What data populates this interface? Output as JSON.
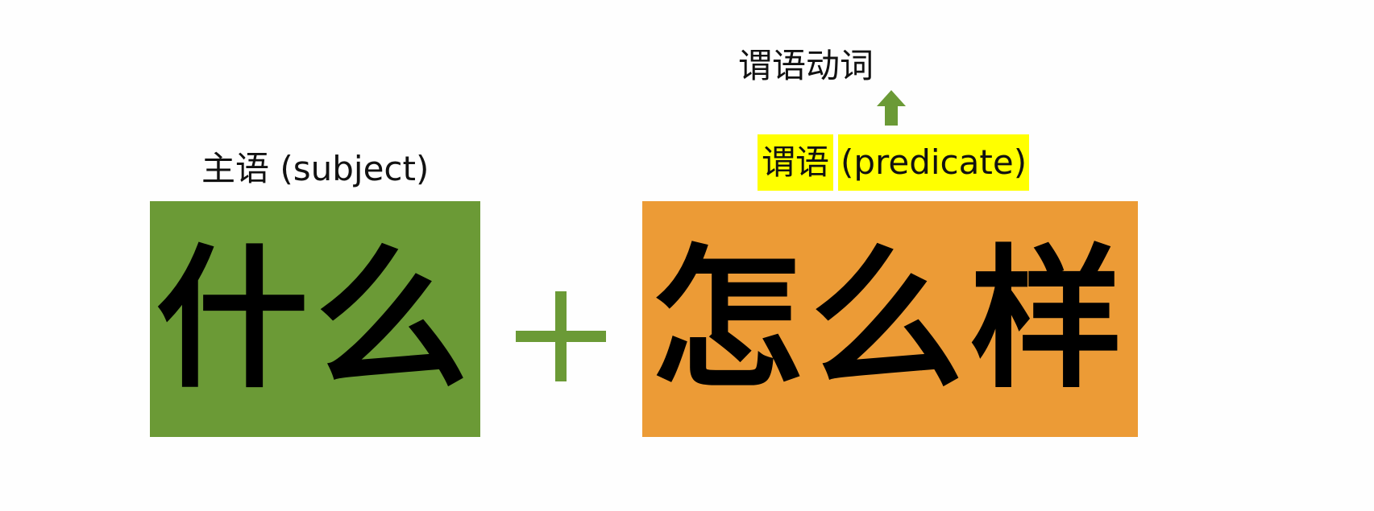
{
  "verb_label": "谓语动词",
  "subject": {
    "label": "主语 (subject)",
    "text": "什么"
  },
  "predicate": {
    "label_cn": "谓语",
    "label_en": "(predicate)",
    "text": "怎么样"
  },
  "colors": {
    "subject_box": "#6b9a36",
    "predicate_box": "#ec9b36",
    "highlight": "#ffff00",
    "plus": "#6b9a36",
    "arrow": "#6b9a36"
  },
  "icons": {
    "arrow": "arrow-up-icon",
    "plus": "plus-icon"
  }
}
